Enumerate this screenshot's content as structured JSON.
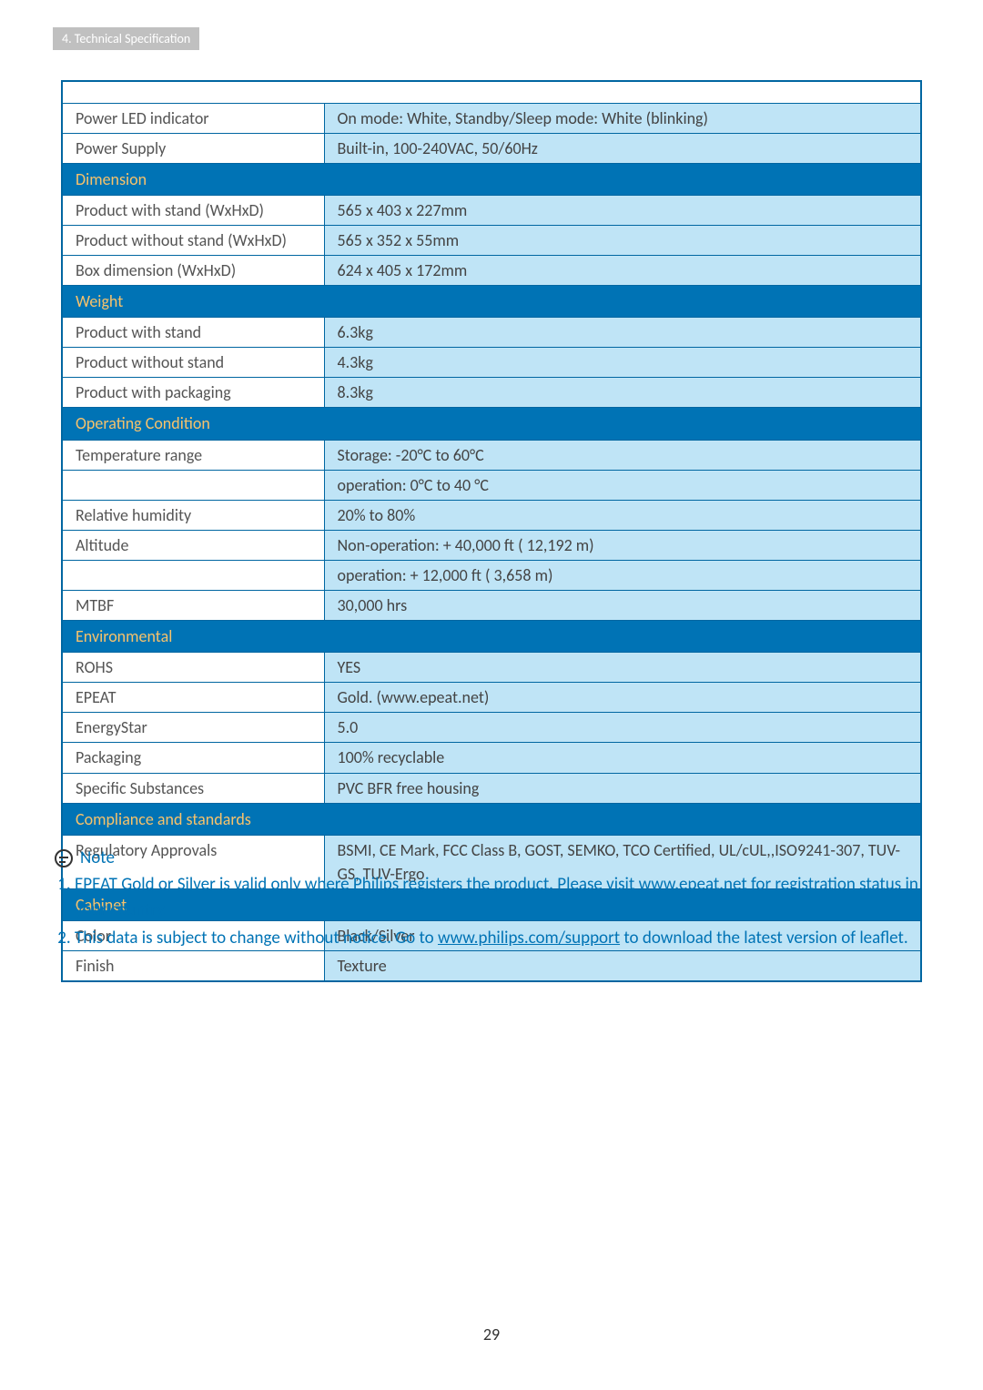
{
  "breadcrumb": "4. Technical Specification",
  "page_number": "29",
  "colors": {
    "section_bg": "#0073b5",
    "section_text": "#f7c26b",
    "data_bg": "#bfe4f6",
    "border": "#0066a1",
    "note_text": "#0073b5"
  },
  "tableRows": [
    {
      "type": "spacer"
    },
    {
      "type": "data",
      "label": "Power LED indicator",
      "value": "On mode: White, Standby/Sleep mode: White (blinking)"
    },
    {
      "type": "data",
      "label": "Power Supply",
      "value": "Built-in, 100-240VAC, 50/60Hz"
    },
    {
      "type": "section",
      "label": "Dimension"
    },
    {
      "type": "data",
      "label": "Product with stand (WxHxD)",
      "value": "565 x 403 x 227mm"
    },
    {
      "type": "data",
      "label": "Product without stand (WxHxD)",
      "value": "565 x 352 x 55mm"
    },
    {
      "type": "data",
      "label": "Box dimension (WxHxD)",
      "value": "624 x 405 x 172mm"
    },
    {
      "type": "section",
      "label": "Weight"
    },
    {
      "type": "data",
      "label": "Product with stand",
      "value": "6.3kg"
    },
    {
      "type": "data",
      "label": "Product without stand",
      "value": "4.3kg"
    },
    {
      "type": "data",
      "label": "Product with packaging",
      "value": "8.3kg"
    },
    {
      "type": "section",
      "label": "Operating Condition"
    },
    {
      "type": "data",
      "label": "Temperature range",
      "value": "Storage: -20°C to 60°C"
    },
    {
      "type": "data",
      "label": "",
      "value": "operation: 0°C to 40 °C"
    },
    {
      "type": "data",
      "label": "Relative humidity",
      "value": "20% to 80%"
    },
    {
      "type": "data",
      "label": "Altitude",
      "value": "Non-operation: + 40,000 ft ( 12,192 m)"
    },
    {
      "type": "data",
      "label": "",
      "value": "operation: + 12,000 ft ( 3,658 m)"
    },
    {
      "type": "data",
      "label": "MTBF",
      "value": "30,000 hrs"
    },
    {
      "type": "section",
      "label": "Environmental"
    },
    {
      "type": "data",
      "label": "ROHS",
      "value": "YES"
    },
    {
      "type": "data",
      "label": "EPEAT",
      "value": "Gold. (www.epeat.net)"
    },
    {
      "type": "data",
      "label": "EnergyStar",
      "value": "5.0"
    },
    {
      "type": "data",
      "label": "Packaging",
      "value": "100% recyclable"
    },
    {
      "type": "data",
      "label": "Specific Substances",
      "value": "PVC BFR free housing"
    },
    {
      "type": "section",
      "label": "Compliance and standards"
    },
    {
      "type": "data",
      "label": "Regulatory Approvals",
      "value": "BSMI, CE Mark, FCC Class B, GOST, SEMKO, TCO Certified, UL/cUL,,ISO9241-307, TUV-GS, TUV-Ergo"
    },
    {
      "type": "section",
      "label": "Cabinet"
    },
    {
      "type": "data",
      "label": "Color",
      "value": "Black/Silver"
    },
    {
      "type": "data",
      "label": "Finish",
      "value": "Texture"
    }
  ],
  "note": {
    "title": "Note",
    "items": [
      {
        "pre": "EPEAT Gold or Silver is valid only where Philips registers the product. Please visit ",
        "link_text": "www.epeat.net",
        "post": " for registration status in your country."
      },
      {
        "pre": "This data is subject to change without notice. Go to ",
        "link_text": "www.philips.com/support",
        "post": " to download the latest version of leaflet."
      }
    ]
  }
}
